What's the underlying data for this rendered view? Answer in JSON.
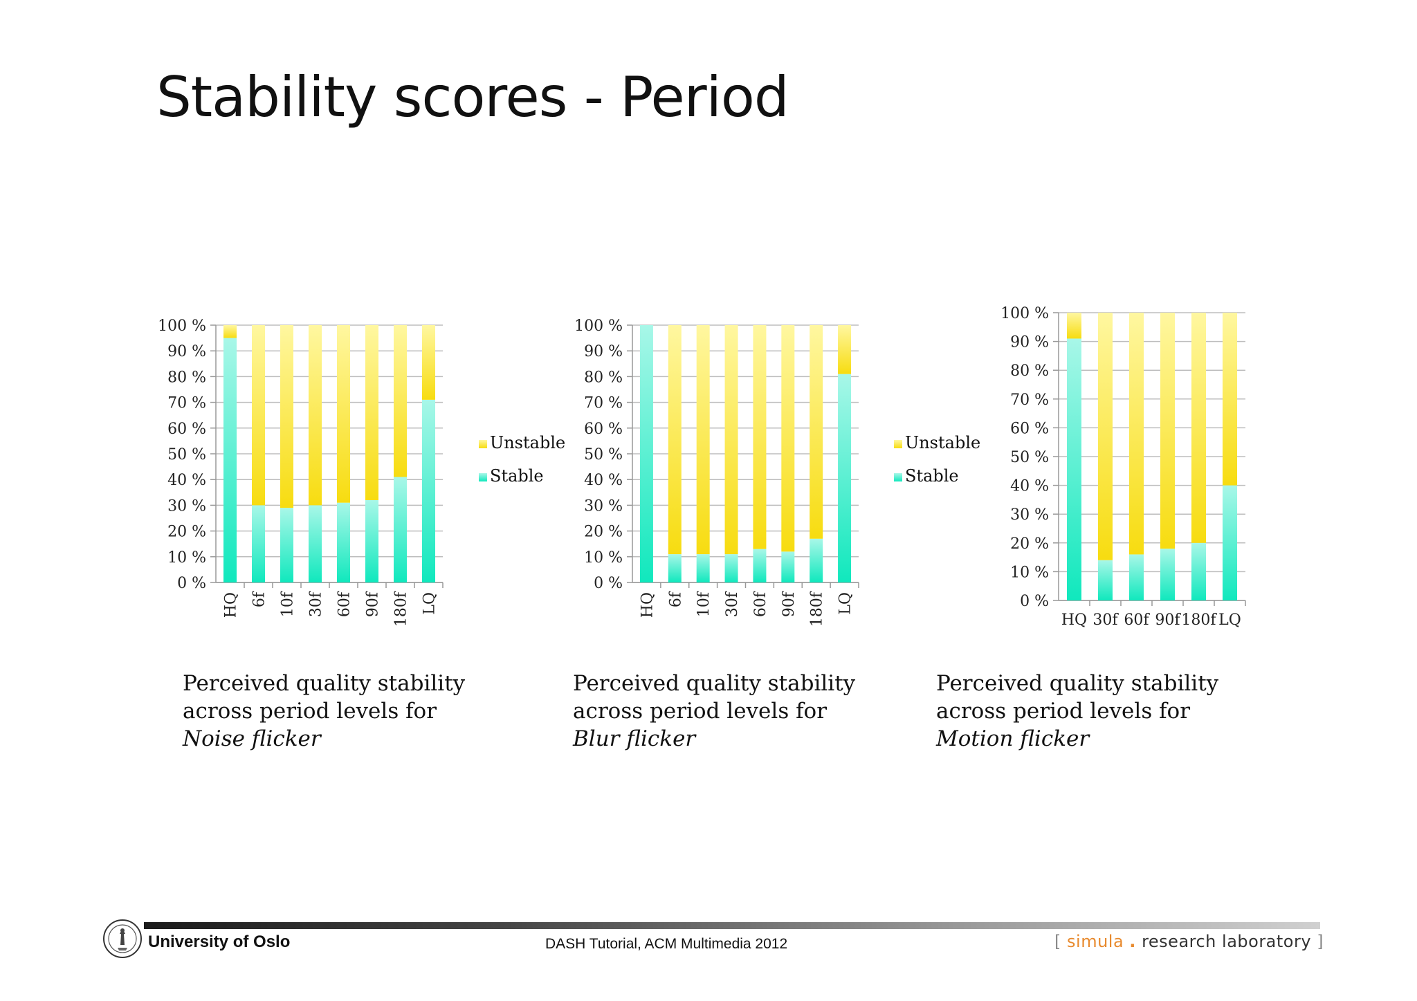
{
  "slide": {
    "title": "Stability scores - Period"
  },
  "legend": {
    "unstable": "Unstable",
    "stable": "Stable"
  },
  "colors": {
    "stable_light": "#a8f7e8",
    "stable_dark": "#10e8bd",
    "unstable_light": "#fff7a0",
    "unstable_dark": "#f7dc10",
    "grid": "#bdbdbd",
    "axis": "#999999"
  },
  "chart_data": [
    {
      "type": "bar",
      "stacked": true,
      "percent": true,
      "categories": [
        "HQ",
        "6f",
        "10f",
        "30f",
        "60f",
        "90f",
        "180f",
        "LQ"
      ],
      "series": [
        {
          "name": "Stable",
          "values": [
            95,
            30,
            29,
            30,
            31,
            32,
            41,
            71
          ]
        },
        {
          "name": "Unstable",
          "values": [
            5,
            70,
            71,
            70,
            69,
            68,
            59,
            29
          ]
        }
      ],
      "ylim": [
        0,
        100
      ],
      "yticks": [
        "0 %",
        "10 %",
        "20 %",
        "30 %",
        "40 %",
        "50 %",
        "60 %",
        "70 %",
        "80 %",
        "90 %",
        "100 %"
      ],
      "label_rotation": "vertical",
      "legend_position": "right",
      "caption": [
        "Perceived quality stability",
        "across period levels for",
        "Noise flicker"
      ]
    },
    {
      "type": "bar",
      "stacked": true,
      "percent": true,
      "categories": [
        "HQ",
        "6f",
        "10f",
        "30f",
        "60f",
        "90f",
        "180f",
        "LQ"
      ],
      "series": [
        {
          "name": "Stable",
          "values": [
            100,
            11,
            11,
            11,
            13,
            12,
            17,
            81
          ]
        },
        {
          "name": "Unstable",
          "values": [
            0,
            89,
            89,
            89,
            87,
            88,
            83,
            19
          ]
        }
      ],
      "ylim": [
        0,
        100
      ],
      "yticks": [
        "0 %",
        "10 %",
        "20 %",
        "30 %",
        "40 %",
        "50 %",
        "60 %",
        "70 %",
        "80 %",
        "90 %",
        "100 %"
      ],
      "label_rotation": "vertical",
      "legend_position": "right",
      "caption": [
        "Perceived quality stability",
        "across period levels for",
        "Blur flicker"
      ]
    },
    {
      "type": "bar",
      "stacked": true,
      "percent": true,
      "categories": [
        "HQ",
        "30f",
        "60f",
        "90f",
        "180f",
        "LQ"
      ],
      "series": [
        {
          "name": "Stable",
          "values": [
            91,
            14,
            16,
            18,
            20,
            40
          ]
        },
        {
          "name": "Unstable",
          "values": [
            9,
            86,
            84,
            82,
            80,
            60
          ]
        }
      ],
      "ylim": [
        0,
        100
      ],
      "yticks": [
        "0 %",
        "10 %",
        "20 %",
        "30 %",
        "40 %",
        "50 %",
        "60 %",
        "70 %",
        "80 %",
        "90 %",
        "100 %"
      ],
      "label_rotation": "horizontal",
      "legend_position": "none",
      "caption": [
        "Perceived quality stability",
        "across period levels for",
        "Motion flicker"
      ]
    }
  ],
  "footer": {
    "university": "University of Oslo",
    "event": "DASH Tutorial, ACM Multimedia 2012",
    "lab_open": "[",
    "lab_brand": "simula",
    "lab_dot": ".",
    "lab_rest": "research laboratory",
    "lab_close": "]"
  }
}
